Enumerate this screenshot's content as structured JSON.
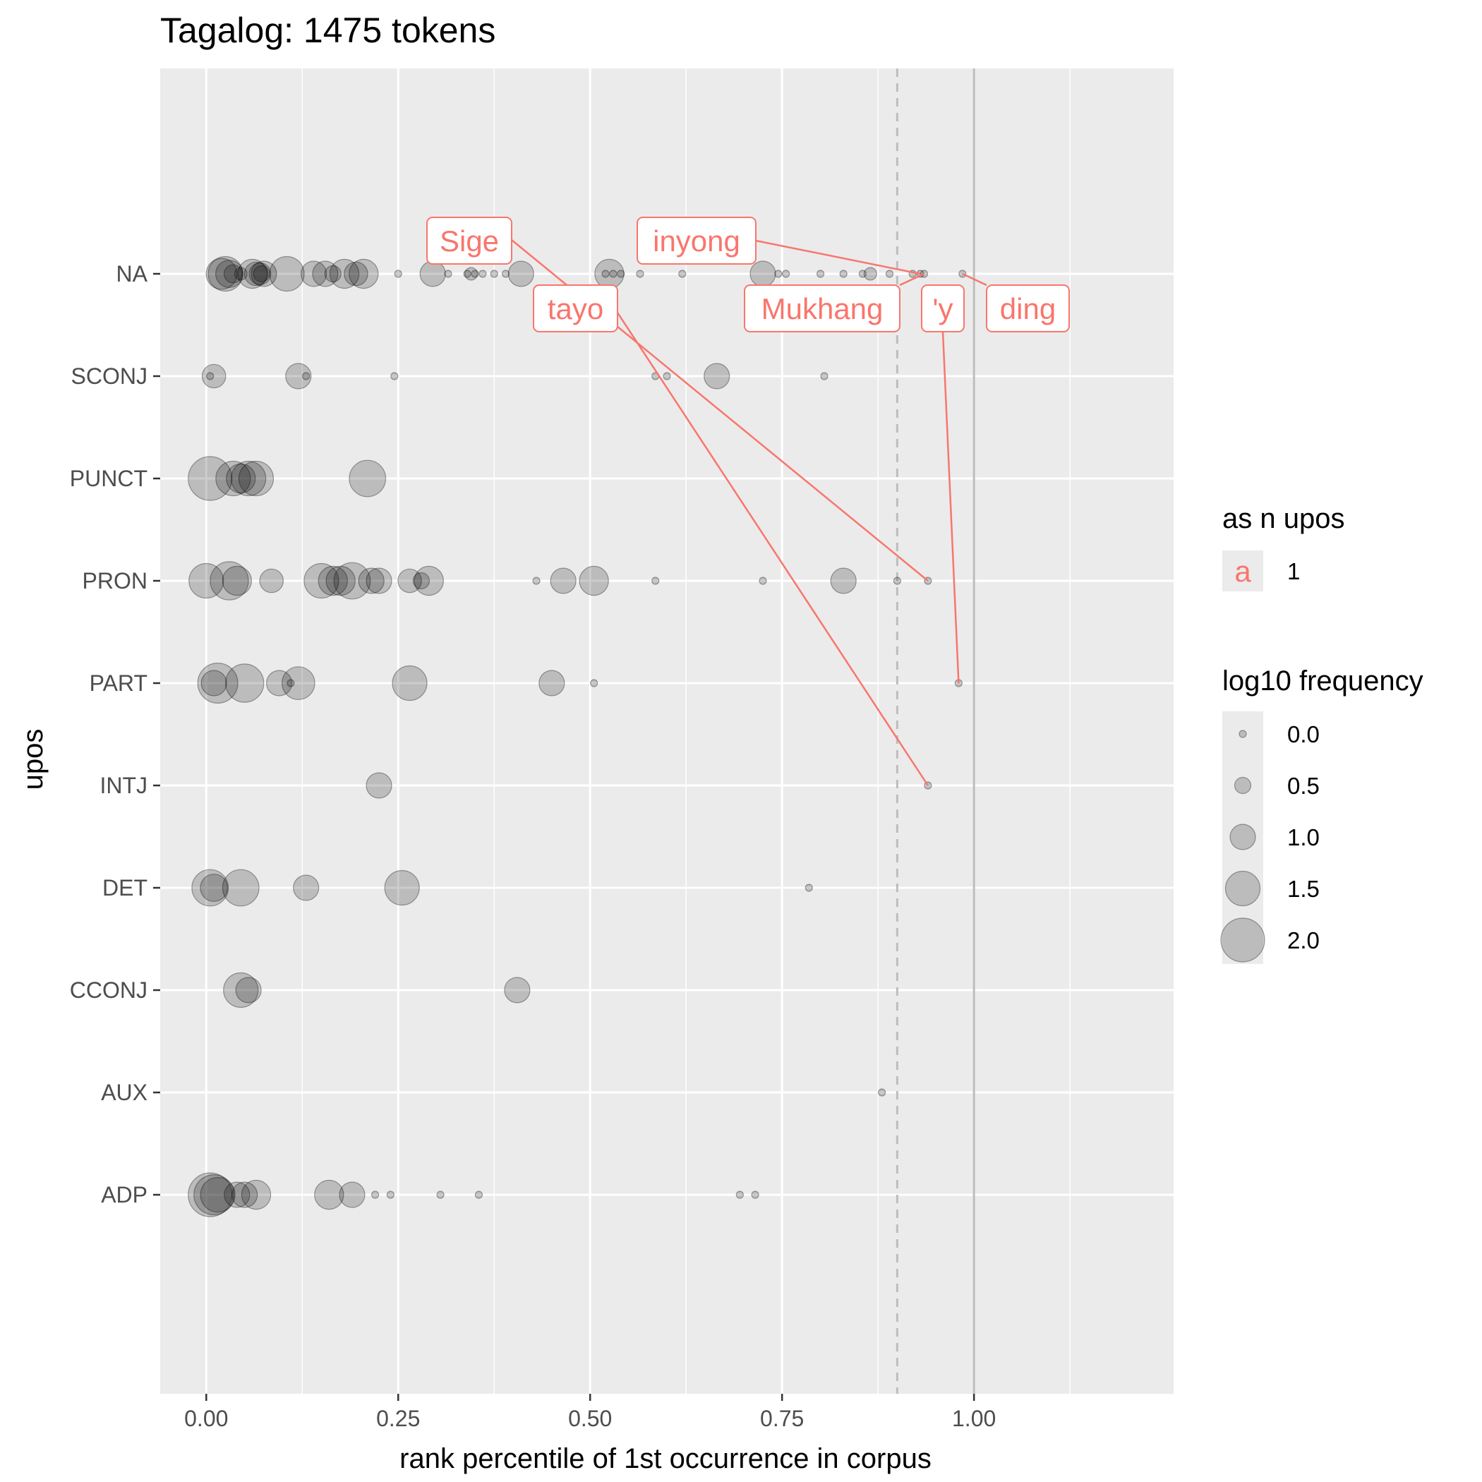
{
  "chart_data": {
    "type": "scatter",
    "title": "Tagalog: 1475 tokens",
    "xlabel": "rank percentile of 1st occurrence in corpus",
    "ylabel": "upos",
    "xlim": [
      -0.06,
      1.26
    ],
    "x_ticks": [
      "0.00",
      "0.25",
      "0.50",
      "0.75",
      "1.00"
    ],
    "x_tick_values": [
      0,
      0.25,
      0.5,
      0.75,
      1.0
    ],
    "categories": [
      "NA",
      "SCONJ",
      "PUNCT",
      "PRON",
      "PART",
      "INTJ",
      "DET",
      "CCONJ",
      "AUX",
      "ADP"
    ],
    "reference_lines": [
      {
        "x": 0.9,
        "style": "dashed",
        "color": "#bdbdbd"
      },
      {
        "x": 1.0,
        "style": "solid",
        "color": "#bdbdbd"
      }
    ],
    "point_color": "#000000",
    "point_alpha": 0.2,
    "label_color": "#F8766D",
    "grid": true,
    "legend_position": "right",
    "legend": {
      "color_title": "as n upos",
      "color_key_glyph": "a",
      "color_entries": [
        "1"
      ],
      "size_title": "log10 frequency",
      "size_entries": [
        "0.0",
        "0.5",
        "1.0",
        "1.5",
        "2.0"
      ],
      "size_values": [
        0,
        0.5,
        1.0,
        1.5,
        2.0
      ]
    },
    "series": [
      {
        "category": "NA",
        "points": [
          [
            0.02,
            1.3
          ],
          [
            0.025,
            1.5
          ],
          [
            0.03,
            1.1
          ],
          [
            0.035,
            0.6
          ],
          [
            0.045,
            0.3
          ],
          [
            0.06,
            1.2
          ],
          [
            0.065,
            0.9
          ],
          [
            0.07,
            0.8
          ],
          [
            0.072,
            0.5
          ],
          [
            0.075,
            1.0
          ],
          [
            0.105,
            1.5
          ],
          [
            0.14,
            1.0
          ],
          [
            0.155,
            1.0
          ],
          [
            0.165,
            0.5
          ],
          [
            0.18,
            1.2
          ],
          [
            0.195,
            0.9
          ],
          [
            0.205,
            1.2
          ],
          [
            0.25,
            0.0
          ],
          [
            0.295,
            1.0
          ],
          [
            0.315,
            0.0
          ],
          [
            0.34,
            0.0
          ],
          [
            0.345,
            0.3
          ],
          [
            0.35,
            0.0
          ],
          [
            0.36,
            0.0
          ],
          [
            0.375,
            0.0
          ],
          [
            0.39,
            0.0
          ],
          [
            0.41,
            1.0
          ],
          [
            0.52,
            0.0
          ],
          [
            0.525,
            1.2
          ],
          [
            0.53,
            0.0
          ],
          [
            0.54,
            0.0
          ],
          [
            0.565,
            0.0
          ],
          [
            0.62,
            0.0
          ],
          [
            0.725,
            1.0
          ],
          [
            0.745,
            0.0
          ],
          [
            0.755,
            0.0
          ],
          [
            0.8,
            0.0
          ],
          [
            0.83,
            0.0
          ],
          [
            0.855,
            0.0
          ],
          [
            0.865,
            0.3
          ],
          [
            0.89,
            0.0
          ],
          [
            0.92,
            0.0
          ],
          [
            0.93,
            0.0
          ],
          [
            0.935,
            0.0
          ],
          [
            0.985,
            0.0
          ]
        ]
      },
      {
        "category": "SCONJ",
        "points": [
          [
            0.005,
            0.0
          ],
          [
            0.01,
            0.9
          ],
          [
            0.12,
            1.0
          ],
          [
            0.13,
            0.0
          ],
          [
            0.245,
            0.0
          ],
          [
            0.585,
            0.0
          ],
          [
            0.6,
            0.0
          ],
          [
            0.665,
            1.0
          ],
          [
            0.805,
            0.0
          ]
        ]
      },
      {
        "category": "PUNCT",
        "points": [
          [
            0.005,
            2.0
          ],
          [
            0.035,
            1.5
          ],
          [
            0.045,
            1.2
          ],
          [
            0.055,
            1.5
          ],
          [
            0.065,
            1.5
          ],
          [
            0.21,
            1.6
          ]
        ]
      },
      {
        "category": "PRON",
        "points": [
          [
            0.0,
            1.5
          ],
          [
            0.03,
            1.7
          ],
          [
            0.04,
            1.2
          ],
          [
            0.085,
            0.9
          ],
          [
            0.15,
            1.5
          ],
          [
            0.165,
            1.2
          ],
          [
            0.175,
            1.2
          ],
          [
            0.19,
            1.6
          ],
          [
            0.215,
            1.0
          ],
          [
            0.225,
            1.0
          ],
          [
            0.265,
            0.9
          ],
          [
            0.28,
            0.5
          ],
          [
            0.29,
            1.2
          ],
          [
            0.43,
            0.0
          ],
          [
            0.465,
            1.0
          ],
          [
            0.505,
            1.2
          ],
          [
            0.585,
            0.0
          ],
          [
            0.725,
            0.0
          ],
          [
            0.83,
            1.0
          ],
          [
            0.9,
            0.0
          ],
          [
            0.94,
            0.0
          ]
        ]
      },
      {
        "category": "PART",
        "points": [
          [
            0.01,
            1.0
          ],
          [
            0.015,
            1.8
          ],
          [
            0.05,
            1.7
          ],
          [
            0.095,
            1.0
          ],
          [
            0.11,
            0.0
          ],
          [
            0.12,
            1.4
          ],
          [
            0.265,
            1.5
          ],
          [
            0.45,
            1.0
          ],
          [
            0.505,
            0.0
          ],
          [
            0.98,
            0.0
          ]
        ]
      },
      {
        "category": "INTJ",
        "points": [
          [
            0.225,
            1.0
          ],
          [
            0.94,
            0.0
          ]
        ]
      },
      {
        "category": "DET",
        "points": [
          [
            0.005,
            1.6
          ],
          [
            0.01,
            1.1
          ],
          [
            0.045,
            1.6
          ],
          [
            0.13,
            1.0
          ],
          [
            0.255,
            1.5
          ],
          [
            0.785,
            0.0
          ]
        ]
      },
      {
        "category": "CCONJ",
        "points": [
          [
            0.045,
            1.5
          ],
          [
            0.055,
            1.0
          ],
          [
            0.405,
            1.0
          ]
        ]
      },
      {
        "category": "AUX",
        "points": [
          [
            0.88,
            0.0
          ]
        ]
      },
      {
        "category": "ADP",
        "points": [
          [
            0.005,
            2.0
          ],
          [
            0.01,
            1.8
          ],
          [
            0.015,
            1.5
          ],
          [
            0.04,
            1.0
          ],
          [
            0.05,
            1.0
          ],
          [
            0.065,
            1.2
          ],
          [
            0.16,
            1.2
          ],
          [
            0.19,
            1.0
          ],
          [
            0.22,
            0.0
          ],
          [
            0.24,
            0.0
          ],
          [
            0.305,
            0.0
          ],
          [
            0.355,
            0.0
          ],
          [
            0.695,
            0.0
          ],
          [
            0.715,
            0.0
          ]
        ]
      }
    ],
    "labels": [
      {
        "text": "Sige",
        "x": 0.94,
        "category": "PRON"
      },
      {
        "text": "inyong",
        "x": 0.93,
        "category": "NA"
      },
      {
        "text": "tayo",
        "x": 0.94,
        "category": "INTJ"
      },
      {
        "text": "Mukhang",
        "x": 0.935,
        "category": "NA"
      },
      {
        "text": "'y",
        "x": 0.98,
        "category": "PART"
      },
      {
        "text": "ding",
        "x": 0.985,
        "category": "NA"
      }
    ]
  }
}
